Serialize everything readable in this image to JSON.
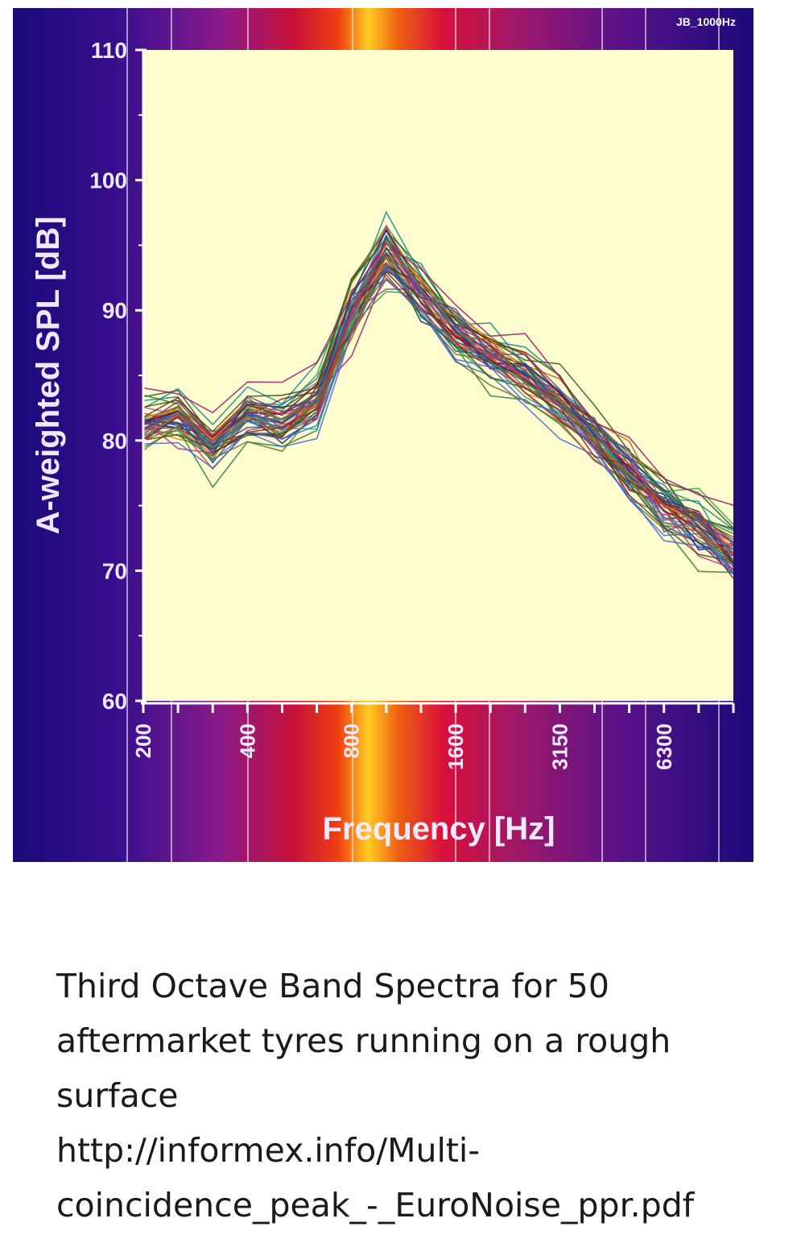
{
  "chart_data": {
    "type": "line",
    "stamp": "JB_1000Hz",
    "ylabel": "A-weighted SPL [dB]",
    "xlabel": "Frequency [Hz]",
    "ylim": [
      60,
      110
    ],
    "y_ticks": [
      60,
      70,
      80,
      90,
      100,
      110
    ],
    "x_bands_hz": [
      200,
      250,
      315,
      400,
      500,
      630,
      800,
      1000,
      1250,
      1600,
      2000,
      2500,
      3150,
      4000,
      5000,
      6300,
      8000,
      10000
    ],
    "x_tick_labels": [
      "200",
      "400",
      "800",
      "1600",
      "3150",
      "6300"
    ],
    "x_tick_label_bands": [
      200,
      400,
      800,
      1600,
      3150,
      6300
    ],
    "series_count": 50,
    "series_colors": [
      "#1f4e9e",
      "#8b1a1a",
      "#2a7f3f",
      "#7a3fa0",
      "#c06010",
      "#1a8a8a",
      "#a01a6a",
      "#4a4a10",
      "#3f6ad8",
      "#d04040",
      "#3a9a4a",
      "#9a5ab8",
      "#e08020",
      "#20a0a0",
      "#c03080",
      "#707020",
      "#1a2a6a",
      "#6a2a2a",
      "#2a5a2a",
      "#5a2a7a"
    ],
    "median_spectrum_db": [
      81.5,
      82.0,
      79.5,
      82.0,
      81.5,
      83.0,
      90.0,
      94.5,
      91.0,
      88.5,
      86.5,
      85.0,
      83.0,
      80.5,
      77.5,
      75.0,
      73.5,
      71.5
    ]
  },
  "caption": {
    "title_lines": [
      "Third Octave Band Spectra for 50",
      "aftermarket tyres running on a rough",
      "surface"
    ],
    "url_lines": [
      "http://informex.info/Multi-",
      "coincidence_peak_-_EuroNoise_ppr.pdf"
    ]
  }
}
